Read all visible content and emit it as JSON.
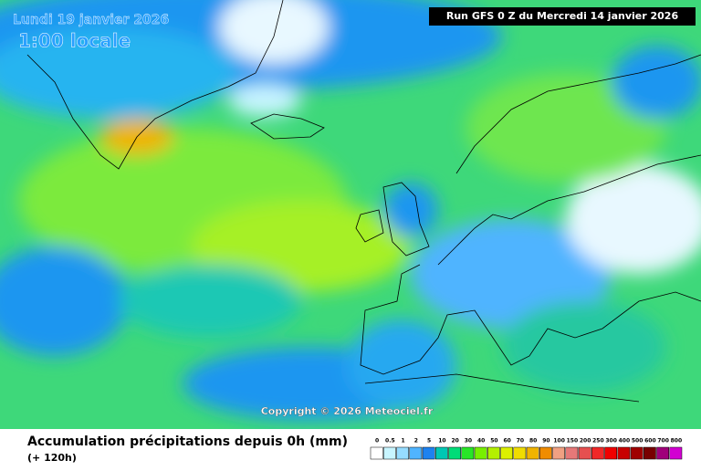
{
  "header": {
    "date": "Lundi 19 janvier 2026",
    "time": "1:00 locale",
    "run": "Run GFS 0 Z du Mercredi 14 janvier 2026"
  },
  "copyright": "Copyright © 2026 Meteociel.fr",
  "legend": {
    "title": "Accumulation précipitations depuis 0h (mm)",
    "subtitle": "(+ 120h)",
    "stops": [
      {
        "value": 0,
        "color": "#ffffff"
      },
      {
        "value": 0.5,
        "color": "#c8f5ff"
      },
      {
        "value": 1,
        "color": "#96dcff"
      },
      {
        "value": 2,
        "color": "#50b4ff"
      },
      {
        "value": 5,
        "color": "#1e82f0"
      },
      {
        "value": 10,
        "color": "#00c8b4"
      },
      {
        "value": 20,
        "color": "#00dc78"
      },
      {
        "value": 30,
        "color": "#28e628"
      },
      {
        "value": 40,
        "color": "#78f000"
      },
      {
        "value": 50,
        "color": "#b4f000"
      },
      {
        "value": 60,
        "color": "#dcf000"
      },
      {
        "value": 70,
        "color": "#f0dc00"
      },
      {
        "value": 80,
        "color": "#f0b400"
      },
      {
        "value": 90,
        "color": "#f08c00"
      },
      {
        "value": 100,
        "color": "#f0a082"
      },
      {
        "value": 150,
        "color": "#e67878"
      },
      {
        "value": 200,
        "color": "#e65050"
      },
      {
        "value": 250,
        "color": "#f02828"
      },
      {
        "value": 300,
        "color": "#f00000"
      },
      {
        "value": 400,
        "color": "#c80000"
      },
      {
        "value": 500,
        "color": "#a00000"
      },
      {
        "value": 600,
        "color": "#780000"
      },
      {
        "value": 700,
        "color": "#a0007a"
      },
      {
        "value": 800,
        "color": "#d200d2"
      }
    ]
  }
}
